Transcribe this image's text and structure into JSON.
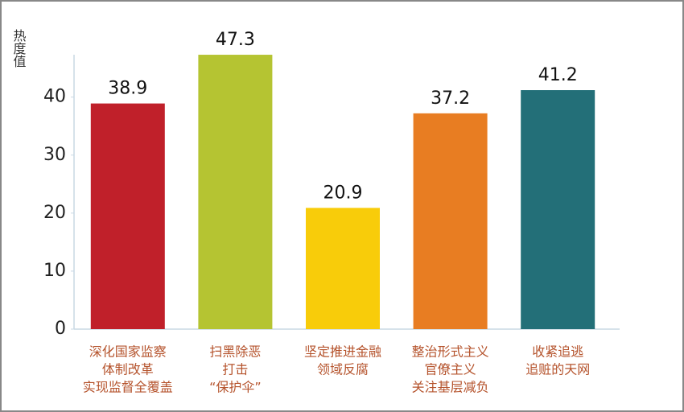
{
  "chart_data": {
    "type": "bar",
    "y_label": "热度值",
    "categories": [
      [
        "深化国家监察",
        "体制改革",
        "实现监督全覆盖"
      ],
      [
        "扫黑除恶",
        "打击",
        "“保护伞”"
      ],
      [
        "坚定推进金融",
        "领域反腐"
      ],
      [
        "整治形式主义",
        "官僚主义",
        "关注基层减负"
      ],
      [
        "收紧追逃",
        "追赃的天网"
      ]
    ],
    "values": [
      38.9,
      47.3,
      20.9,
      37.2,
      41.2
    ],
    "colors": [
      "#c0202a",
      "#b5c432",
      "#f8cc0a",
      "#e87d22",
      "#236f78"
    ],
    "ylim": [
      0,
      48
    ],
    "yticks": [
      0,
      10,
      20,
      30,
      40
    ],
    "grid": false
  }
}
